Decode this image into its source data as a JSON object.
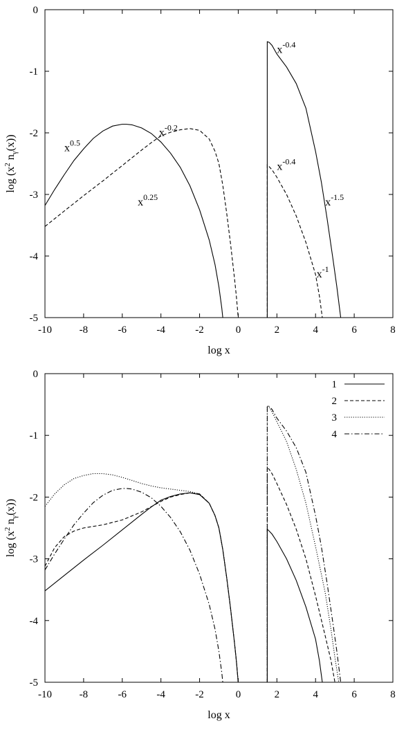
{
  "chart_data": [
    {
      "type": "line",
      "xlabel": "log  x",
      "ylabel": "log (x² n_γ(x))",
      "ylabel_parts": {
        "pre": "log (x",
        "sup": "2",
        "mid": " n",
        "sub": "γ",
        "post": "(x))"
      },
      "xlim": [
        -10,
        8
      ],
      "ylim": [
        -5,
        0
      ],
      "xticks": [
        -10,
        -8,
        -6,
        -4,
        -2,
        0,
        2,
        4,
        6,
        8
      ],
      "yticks": [
        -5,
        -4,
        -3,
        -2,
        -1,
        0
      ],
      "grid": false,
      "legend": null,
      "series": [
        {
          "style": "solid",
          "x": [
            -10,
            -9.5,
            -9,
            -8.5,
            -8,
            -7.5,
            -7,
            -6.5,
            -6,
            -5.8,
            -5.5,
            -5,
            -4.5,
            -4,
            -3.5,
            -3,
            -2.5,
            -2,
            -1.5,
            -1.2,
            -1,
            -0.85,
            -0.8
          ],
          "y": [
            -3.18,
            -2.92,
            -2.68,
            -2.45,
            -2.26,
            -2.09,
            -1.97,
            -1.89,
            -1.86,
            -1.86,
            -1.87,
            -1.92,
            -2.01,
            -2.15,
            -2.33,
            -2.56,
            -2.86,
            -3.25,
            -3.74,
            -4.14,
            -4.5,
            -4.85,
            -5.0
          ]
        },
        {
          "style": "dashed",
          "x": [
            -10,
            -9,
            -8,
            -7,
            -6,
            -5,
            -4.5,
            -4,
            -3.5,
            -3,
            -2.5,
            -2,
            -1.5,
            -1.2,
            -1,
            -0.8,
            -0.6,
            -0.4,
            -0.2,
            -0.1,
            0
          ],
          "y": [
            -3.52,
            -3.27,
            -3.02,
            -2.78,
            -2.53,
            -2.28,
            -2.16,
            -2.05,
            -1.99,
            -1.95,
            -1.93,
            -1.96,
            -2.1,
            -2.3,
            -2.5,
            -2.85,
            -3.3,
            -3.8,
            -4.35,
            -4.65,
            -5.0
          ]
        },
        {
          "style": "solid",
          "x": [
            1.5,
            1.5,
            1.6,
            1.75,
            2,
            2.5,
            3,
            3.5,
            4,
            4.3,
            4.6,
            4.9,
            5.1,
            5.3
          ],
          "y": [
            -5.0,
            -0.52,
            -0.53,
            -0.58,
            -0.72,
            -0.93,
            -1.2,
            -1.6,
            -2.3,
            -2.8,
            -3.4,
            -4.05,
            -4.5,
            -5.0
          ]
        },
        {
          "style": "dashed",
          "x": [
            1.5,
            1.5,
            1.6,
            1.75,
            2,
            2.5,
            3,
            3.5,
            4,
            4.2,
            4.35
          ],
          "y": [
            -5.0,
            -2.52,
            -2.55,
            -2.6,
            -2.72,
            -3.0,
            -3.35,
            -3.78,
            -4.3,
            -4.65,
            -5.0
          ]
        }
      ],
      "annotations": [
        {
          "base": "x",
          "sup": "0.5",
          "x": -9.0,
          "y": -2.3
        },
        {
          "base": "x",
          "sup": "-0.2",
          "x": -4.1,
          "y": -2.05
        },
        {
          "base": "x",
          "sup": "0.25",
          "x": -5.2,
          "y": -3.18
        },
        {
          "base": "x",
          "sup": "-0.4",
          "x": 2.0,
          "y": -0.7
        },
        {
          "base": "x",
          "sup": "-0.4",
          "x": 2.0,
          "y": -2.6
        },
        {
          "base": "x",
          "sup": "-1.5",
          "x": 4.5,
          "y": -3.18
        },
        {
          "base": "x",
          "sup": "-1",
          "x": 4.05,
          "y": -4.35
        }
      ]
    },
    {
      "type": "line",
      "xlabel": "log  x",
      "ylabel": "log (x² n_γ(x))",
      "ylabel_parts": {
        "pre": "log (x",
        "sup": "2",
        "mid": " n",
        "sub": "γ",
        "post": "(x))"
      },
      "xlim": [
        -10,
        8
      ],
      "ylim": [
        -5,
        0
      ],
      "xticks": [
        -10,
        -8,
        -6,
        -4,
        -2,
        0,
        2,
        4,
        6,
        8
      ],
      "yticks": [
        -5,
        -4,
        -3,
        -2,
        -1,
        0
      ],
      "grid": false,
      "legend": "top-right",
      "series": [
        {
          "name": "1",
          "style": "solid",
          "x": [
            -10,
            -9,
            -8,
            -7,
            -6,
            -5,
            -4.5,
            -4,
            -3.5,
            -3,
            -2.5,
            -2,
            -1.5,
            -1.2,
            -1,
            -0.8,
            -0.6,
            -0.4,
            -0.2,
            -0.1,
            0,
            null,
            1.5,
            1.5,
            1.6,
            1.75,
            2,
            2.5,
            3,
            3.5,
            4,
            4.2,
            4.35
          ],
          "y": [
            -3.52,
            -3.27,
            -3.02,
            -2.78,
            -2.53,
            -2.28,
            -2.16,
            -2.05,
            -1.99,
            -1.95,
            -1.93,
            -1.96,
            -2.1,
            -2.3,
            -2.5,
            -2.85,
            -3.3,
            -3.8,
            -4.35,
            -4.65,
            -5.0,
            null,
            -5.0,
            -2.52,
            -2.55,
            -2.6,
            -2.72,
            -3.0,
            -3.35,
            -3.78,
            -4.3,
            -4.65,
            -5.0
          ]
        },
        {
          "name": "2",
          "style": "dashed",
          "x": [
            -10,
            -9.5,
            -9,
            -8.5,
            -8,
            -7,
            -6,
            -5,
            -4,
            -3.5,
            -3,
            -2.5,
            -2,
            -1.5,
            -1.2,
            -1,
            -0.8,
            -0.6,
            -0.4,
            -0.2,
            -0.1,
            0,
            null,
            1.5,
            1.5,
            1.6,
            1.75,
            2,
            2.5,
            3,
            3.5,
            4,
            4.5,
            4.8,
            5.0
          ],
          "y": [
            -3.12,
            -2.82,
            -2.64,
            -2.55,
            -2.5,
            -2.45,
            -2.37,
            -2.24,
            -2.07,
            -2.0,
            -1.96,
            -1.93,
            -1.95,
            -2.1,
            -2.3,
            -2.5,
            -2.85,
            -3.3,
            -3.8,
            -4.35,
            -4.65,
            -5.0,
            null,
            -5.0,
            -1.52,
            -1.55,
            -1.62,
            -1.78,
            -2.12,
            -2.52,
            -3.0,
            -3.6,
            -4.25,
            -4.65,
            -5.0
          ]
        },
        {
          "name": "3",
          "style": "dotted",
          "x": [
            -10,
            -9.5,
            -9,
            -8.5,
            -8,
            -7.5,
            -7,
            -6.5,
            -6,
            -5.5,
            -5,
            -4.5,
            -4,
            -3.5,
            -3,
            -2.5,
            -2,
            -1.5,
            -1.2,
            -1,
            -0.8,
            -0.6,
            -0.4,
            -0.2,
            -0.1,
            0,
            null,
            1.5,
            1.5,
            1.6,
            1.75,
            2,
            2.5,
            3,
            3.5,
            4,
            4.5,
            4.8,
            5.0,
            5.2
          ],
          "y": [
            -2.15,
            -1.95,
            -1.8,
            -1.7,
            -1.65,
            -1.62,
            -1.62,
            -1.64,
            -1.68,
            -1.73,
            -1.78,
            -1.82,
            -1.85,
            -1.87,
            -1.89,
            -1.91,
            -1.95,
            -2.1,
            -2.3,
            -2.5,
            -2.85,
            -3.3,
            -3.8,
            -4.35,
            -4.65,
            -5.0,
            null,
            -5.0,
            -0.52,
            -0.55,
            -0.62,
            -0.78,
            -1.1,
            -1.55,
            -2.1,
            -2.8,
            -3.55,
            -4.15,
            -4.6,
            -5.0
          ]
        },
        {
          "name": "4",
          "style": "dashdot",
          "x": [
            -10,
            -9.5,
            -9,
            -8.5,
            -8,
            -7.5,
            -7,
            -6.5,
            -6,
            -5.8,
            -5.5,
            -5,
            -4.5,
            -4,
            -3.5,
            -3,
            -2.5,
            -2,
            -1.5,
            -1.2,
            -1,
            -0.85,
            -0.8,
            null,
            1.5,
            1.5,
            1.6,
            1.75,
            2,
            2.5,
            3,
            3.5,
            4,
            4.3,
            4.6,
            4.9,
            5.1,
            5.3
          ],
          "y": [
            -3.18,
            -2.92,
            -2.68,
            -2.45,
            -2.26,
            -2.09,
            -1.97,
            -1.89,
            -1.86,
            -1.86,
            -1.87,
            -1.92,
            -2.01,
            -2.15,
            -2.33,
            -2.56,
            -2.86,
            -3.25,
            -3.74,
            -4.14,
            -4.5,
            -4.85,
            -5.0,
            null,
            -5.0,
            -0.52,
            -0.53,
            -0.58,
            -0.72,
            -0.93,
            -1.2,
            -1.6,
            -2.3,
            -2.8,
            -3.4,
            -4.05,
            -4.5,
            -5.0
          ]
        }
      ],
      "annotations": []
    }
  ]
}
